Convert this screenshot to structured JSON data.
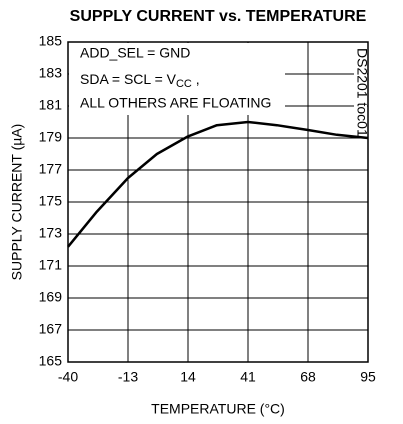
{
  "chart_data": {
    "type": "line",
    "title": "SUPPLY CURRENT vs. TEMPERATURE",
    "x_label": "TEMPERATURE (°C)",
    "y_label": "SUPPLY CURRENT (µA)",
    "annotation_1": "ADD_SEL = GND",
    "annotation_2": {
      "text": "SDA = SCL = V",
      "sub": "CC",
      "after": " ,"
    },
    "annotation_3": "ALL OTHERS ARE FLOATING",
    "watermark": "DS2201 toc01",
    "x": [
      -40,
      -27,
      -13,
      0,
      14,
      27,
      41,
      54,
      68,
      81,
      95
    ],
    "series": [
      {
        "color": "#000000",
        "values": [
          172.2,
          174.4,
          176.5,
          178,
          179.1,
          179.8,
          180,
          179.8,
          179.5,
          179.2,
          179
        ]
      }
    ],
    "xlim": [
      -40,
      95
    ],
    "xticks": [
      -40,
      -13,
      14,
      41,
      68,
      95
    ],
    "ylim": [
      165,
      185
    ],
    "yticks": [
      165,
      167,
      169,
      171,
      173,
      175,
      177,
      179,
      181,
      183,
      185
    ],
    "grid": true
  }
}
